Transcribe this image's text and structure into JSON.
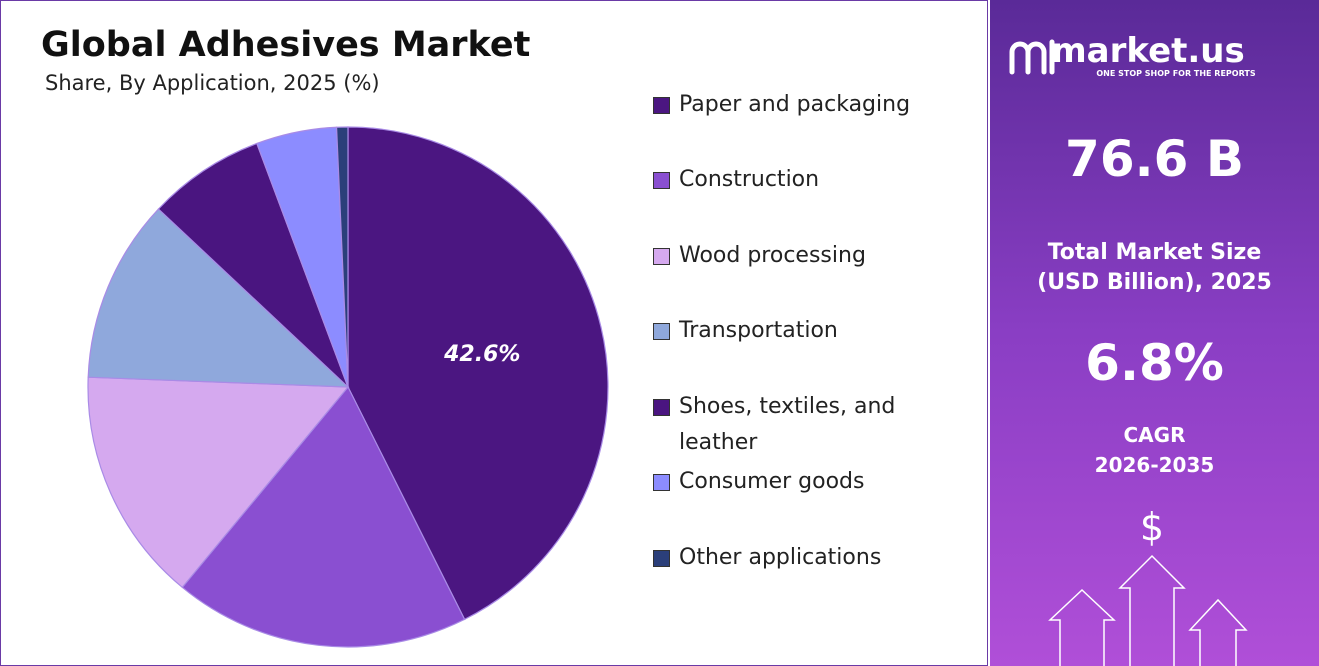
{
  "chart_data": {
    "type": "pie",
    "title": "Global Adhesives Market",
    "subtitle": "Share, By Application, 2025 (%)",
    "categories": [
      "Paper and packaging",
      "Construction",
      "Wood processing",
      "Transportation",
      "Shoes, textiles, and leather",
      "Consumer goods",
      "Other applications"
    ],
    "values": [
      42.6,
      18.4,
      14.6,
      11.4,
      7.3,
      5.0,
      0.7
    ],
    "value_labels": [
      "42.6%",
      null,
      null,
      null,
      null,
      null,
      null
    ],
    "colors": [
      "#4b1681",
      "#8a4fd1",
      "#d5a9ef",
      "#8fa8dc",
      "#4a1580",
      "#8c8cff",
      "#2b3f7a"
    ]
  },
  "sidebar": {
    "brand": "market.us",
    "tagline": "ONE STOP SHOP FOR THE REPORTS",
    "market_size": "76.6 B",
    "market_size_caption": [
      "Total Market Size",
      "(USD Billion), 2025"
    ],
    "cagr": "6.8%",
    "cagr_caption": [
      "CAGR",
      "2026-2035"
    ]
  }
}
